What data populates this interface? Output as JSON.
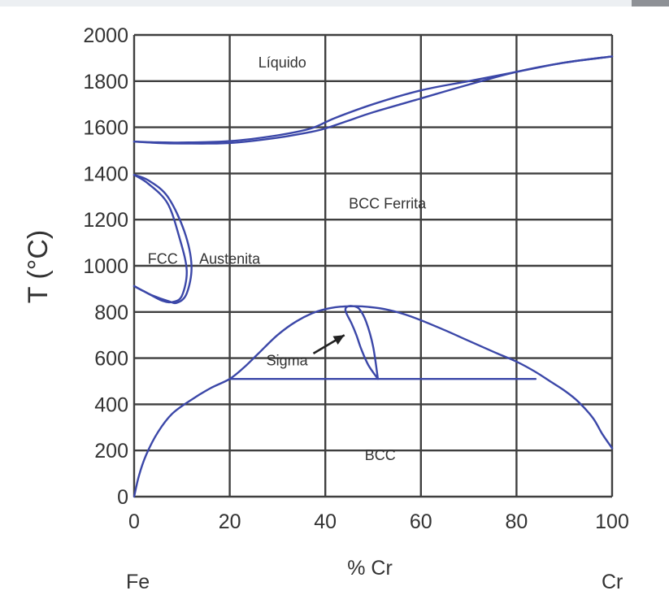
{
  "chart_data": {
    "type": "line",
    "title": "",
    "xlabel": "% Cr",
    "ylabel": "T (°C)",
    "xlim": [
      0,
      100
    ],
    "ylim": [
      0,
      2000
    ],
    "x_ticks": [
      "0",
      "20",
      "40",
      "60",
      "80",
      "100"
    ],
    "y_ticks": [
      "0",
      "200",
      "400",
      "600",
      "800",
      "1000",
      "1200",
      "1400",
      "1600",
      "1800",
      "2000"
    ],
    "grid": true,
    "end_labels": {
      "left": "Fe",
      "right": "Cr"
    },
    "region_labels": [
      {
        "text": "Líquido",
        "x": 31,
        "y": 1880
      },
      {
        "text": "BCC Ferrita",
        "x": 53,
        "y": 1270
      },
      {
        "text": "FCC",
        "x": 6,
        "y": 1030
      },
      {
        "text": "Austenita",
        "x": 20,
        "y": 1030
      },
      {
        "text": "Sigma",
        "x": 32,
        "y": 590
      },
      {
        "text": "BCC",
        "x": 51.5,
        "y": 180
      }
    ],
    "series": [
      {
        "x": [
          0,
          5,
          10,
          20,
          30,
          37,
          42,
          50,
          60,
          70,
          80,
          90,
          100
        ],
        "y": [
          1538,
          1535,
          1534,
          1540,
          1565,
          1595,
          1640,
          1700,
          1760,
          1800,
          1840,
          1880,
          1907
        ]
      },
      {
        "x": [
          0,
          5,
          10,
          20,
          30,
          37,
          40,
          45,
          50,
          60,
          70,
          80,
          90,
          100
        ],
        "y": [
          1538,
          1532,
          1530,
          1532,
          1555,
          1580,
          1595,
          1630,
          1665,
          1725,
          1785,
          1840,
          1880,
          1907
        ]
      },
      {
        "x": [
          0,
          3,
          7,
          10.5,
          12,
          11,
          9,
          7,
          4,
          2,
          0
        ],
        "y": [
          1394,
          1370,
          1300,
          1150,
          1000,
          880,
          840,
          848,
          870,
          890,
          912
        ]
      },
      {
        "x": [
          0,
          3,
          7,
          9.5,
          11,
          10,
          8,
          6,
          4,
          2,
          0
        ],
        "y": [
          1394,
          1355,
          1270,
          1120,
          980,
          870,
          843,
          848,
          868,
          890,
          912
        ]
      },
      {
        "x": [
          0,
          1,
          2.5,
          5,
          8,
          12,
          16,
          20,
          23,
          26,
          30,
          34,
          38,
          42,
          46,
          49,
          53,
          58,
          64,
          70,
          76,
          80,
          84,
          87,
          90,
          93,
          96,
          98,
          100
        ],
        "y": [
          0,
          90,
          180,
          280,
          360,
          420,
          470,
          510,
          560,
          620,
          700,
          760,
          800,
          820,
          825,
          822,
          810,
          780,
          730,
          675,
          620,
          585,
          540,
          500,
          460,
          410,
          340,
          270,
          210
        ]
      },
      {
        "x": [
          20,
          84
        ],
        "y": [
          510,
          510
        ]
      },
      {
        "x": [
          51,
          49,
          47.5,
          46.5,
          45.5,
          44.5,
          44.2,
          44.5,
          45.5,
          47,
          48.5,
          50,
          51
        ],
        "y": [
          510,
          570,
          640,
          700,
          750,
          790,
          810,
          822,
          826,
          815,
          760,
          650,
          510
        ]
      }
    ],
    "annotations": [
      {
        "type": "arrow",
        "from": [
          37.5,
          620
        ],
        "to": [
          44,
          700
        ]
      }
    ]
  }
}
